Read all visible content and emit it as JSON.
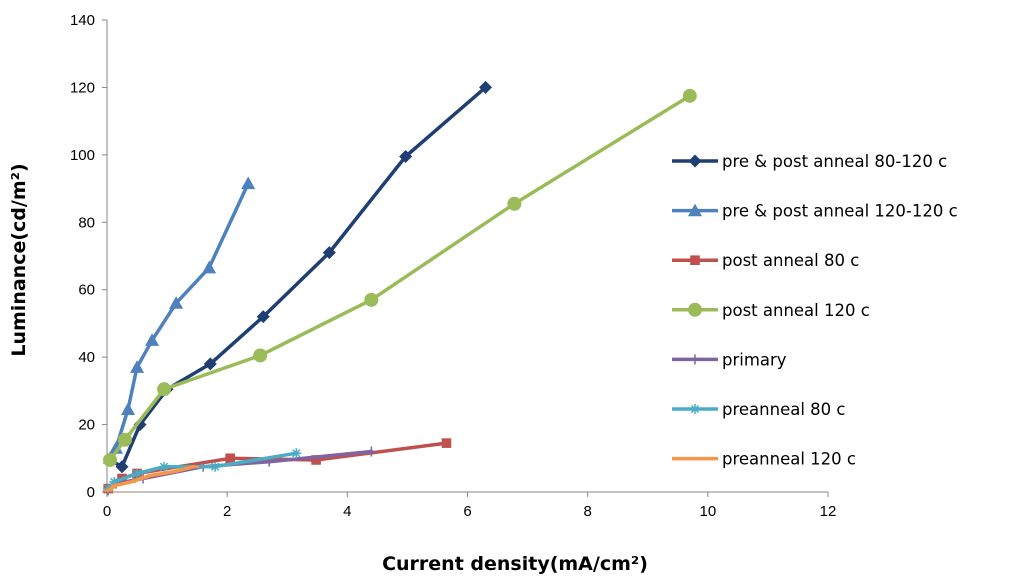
{
  "chart_data": {
    "type": "scatter",
    "xlabel": "Current density(mA/cm²)",
    "ylabel": "Luminance(cd/m²)",
    "xlim": [
      0,
      12
    ],
    "ylim": [
      0,
      140
    ],
    "xticks": [
      0,
      2,
      4,
      6,
      8,
      10,
      12
    ],
    "yticks": [
      0,
      20,
      40,
      60,
      80,
      100,
      120,
      140
    ],
    "grid": false,
    "legend_position": "right",
    "series": [
      {
        "name": "pre & post anneal 80-120 c",
        "color": "#1f3f73",
        "marker": "diamond",
        "x": [
          0.05,
          0.25,
          0.55,
          1.0,
          1.72,
          2.6,
          3.7,
          4.97,
          6.3
        ],
        "y": [
          9.5,
          7.5,
          20,
          30.5,
          38,
          52,
          71,
          99.5,
          120
        ]
      },
      {
        "name": "pre & post anneal 120-120 c",
        "color": "#4f81bd",
        "marker": "triangle",
        "x": [
          0.05,
          0.15,
          0.35,
          0.5,
          0.75,
          1.15,
          1.7,
          2.35
        ],
        "y": [
          10,
          13,
          24.5,
          37,
          45,
          56,
          66.5,
          91.5
        ]
      },
      {
        "name": "post anneal 80 c",
        "color": "#c0504d",
        "marker": "square",
        "x": [
          0.02,
          0.25,
          0.5,
          2.05,
          3.48,
          5.65
        ],
        "y": [
          1,
          4,
          5.5,
          10,
          9.5,
          14.5
        ]
      },
      {
        "name": "post anneal 120 c",
        "color": "#9bbb59",
        "marker": "circle",
        "x": [
          0.05,
          0.3,
          0.95,
          2.55,
          4.4,
          6.78,
          9.7
        ],
        "y": [
          9.5,
          15.5,
          30.5,
          40.5,
          57,
          85.5,
          117.5
        ]
      },
      {
        "name": "primary",
        "color": "#8064a2",
        "marker": "plus",
        "x": [
          0.02,
          0.15,
          0.6,
          1.6,
          2.7,
          4.4
        ],
        "y": [
          0.5,
          2.5,
          4,
          7.5,
          9,
          12
        ]
      },
      {
        "name": "preanneal 80 c",
        "color": "#4bacc6",
        "marker": "asterisk",
        "x": [
          0.02,
          0.12,
          0.5,
          0.95,
          1.8,
          3.15
        ],
        "y": [
          1,
          3,
          5.5,
          7.5,
          7.5,
          11.5
        ]
      },
      {
        "name": "preanneal 120 c",
        "color": "#f79646",
        "marker": "dash",
        "x": [
          0.02,
          0.15,
          0.4,
          0.75,
          1.1,
          1.45
        ],
        "y": [
          0.5,
          2,
          3,
          5,
          6,
          7.5
        ]
      }
    ]
  }
}
